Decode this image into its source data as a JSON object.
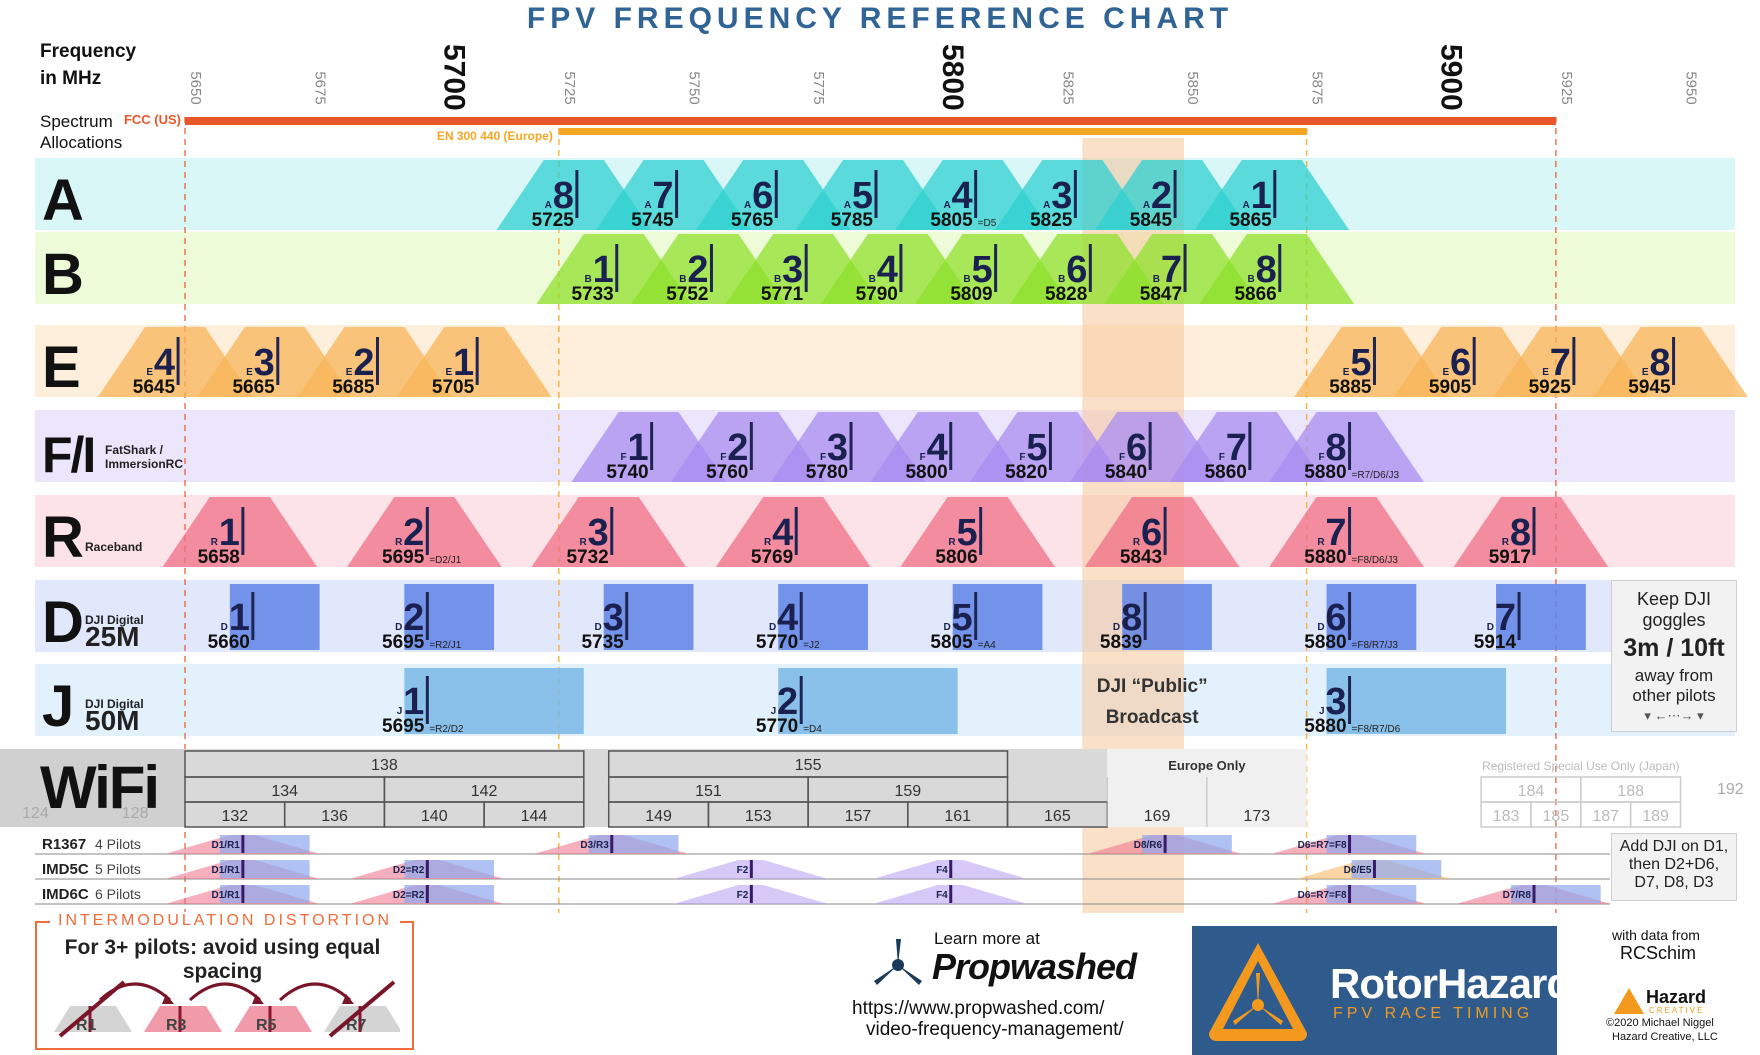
{
  "title": "FPV FREQUENCY REFERENCE CHART",
  "header": {
    "axis_label_line1": "Frequency",
    "axis_label_line2": "in MHz",
    "allocations_line1": "Spectrum",
    "allocations_line2": "Allocations"
  },
  "chart_data": {
    "type": "frequency_band_chart",
    "x_axis": {
      "label": "Frequency in MHz",
      "range": [
        5650,
        5950
      ],
      "ticks": [
        5650,
        5675,
        5700,
        5725,
        5750,
        5775,
        5800,
        5825,
        5850,
        5875,
        5900,
        5925,
        5950
      ],
      "major_ticks": [
        5700,
        5800,
        5900
      ]
    },
    "allocations": [
      {
        "name": "FCC (US)",
        "start": 5650,
        "end": 5925,
        "color": "#e8572a"
      },
      {
        "name": "EN 300 440 (Europe)",
        "start": 5725,
        "end": 5875,
        "color": "#f5a623"
      }
    ],
    "dji_public_broadcast": {
      "start": 5830,
      "end": 5848,
      "label_line1": "DJI “Public”",
      "label_line2": "Broadcast"
    },
    "bands": [
      {
        "letter": "A",
        "sub1": "",
        "sub2": "",
        "prefix": "A",
        "color": "#2fd0d0",
        "bg": "#d9f7f7",
        "channels": [
          {
            "ch": "8",
            "f": 5725
          },
          {
            "ch": "7",
            "f": 5745
          },
          {
            "ch": "6",
            "f": 5765
          },
          {
            "ch": "5",
            "f": 5785
          },
          {
            "ch": "4",
            "f": 5805,
            "note": "=D5"
          },
          {
            "ch": "3",
            "f": 5825
          },
          {
            "ch": "2",
            "f": 5845
          },
          {
            "ch": "1",
            "f": 5865
          }
        ]
      },
      {
        "letter": "B",
        "sub1": "",
        "sub2": "",
        "prefix": "B",
        "color": "#8fe02c",
        "bg": "#eefbd9",
        "channels": [
          {
            "ch": "1",
            "f": 5733
          },
          {
            "ch": "2",
            "f": 5752
          },
          {
            "ch": "3",
            "f": 5771
          },
          {
            "ch": "4",
            "f": 5790
          },
          {
            "ch": "5",
            "f": 5809
          },
          {
            "ch": "6",
            "f": 5828
          },
          {
            "ch": "7",
            "f": 5847
          },
          {
            "ch": "8",
            "f": 5866
          }
        ]
      },
      {
        "letter": "E",
        "sub1": "",
        "sub2": "",
        "prefix": "E",
        "color": "#f7b55a",
        "bg": "#fdefdc",
        "channels": [
          {
            "ch": "4",
            "f": 5645
          },
          {
            "ch": "3",
            "f": 5665
          },
          {
            "ch": "2",
            "f": 5685
          },
          {
            "ch": "1",
            "f": 5705
          },
          {
            "ch": "5",
            "f": 5885
          },
          {
            "ch": "6",
            "f": 5905
          },
          {
            "ch": "7",
            "f": 5925
          },
          {
            "ch": "8",
            "f": 5945
          }
        ]
      },
      {
        "letter": "F/I",
        "sub1": "FatShark /",
        "sub2": "ImmersionRC",
        "prefix": "F",
        "color": "#a98cf0",
        "bg": "#ece6fc",
        "channels": [
          {
            "ch": "1",
            "f": 5740
          },
          {
            "ch": "2",
            "f": 5760
          },
          {
            "ch": "3",
            "f": 5780
          },
          {
            "ch": "4",
            "f": 5800
          },
          {
            "ch": "5",
            "f": 5820
          },
          {
            "ch": "6",
            "f": 5840
          },
          {
            "ch": "7",
            "f": 5860
          },
          {
            "ch": "8",
            "f": 5880,
            "note": "=R7/D6/J3"
          }
        ]
      },
      {
        "letter": "R",
        "sub1": "Raceband",
        "sub2": "",
        "prefix": "R",
        "color": "#ef6f86",
        "bg": "#fbe3e8",
        "channels": [
          {
            "ch": "1",
            "f": 5658
          },
          {
            "ch": "2",
            "f": 5695,
            "note": "=D2/J1"
          },
          {
            "ch": "3",
            "f": 5732
          },
          {
            "ch": "4",
            "f": 5769
          },
          {
            "ch": "5",
            "f": 5806
          },
          {
            "ch": "6",
            "f": 5843
          },
          {
            "ch": "7",
            "f": 5880,
            "note": "=F8/D6/J3"
          },
          {
            "ch": "8",
            "f": 5917
          }
        ]
      },
      {
        "letter": "D",
        "sub1": "DJI Digital",
        "sub2": "25M",
        "prefix": "D",
        "color": "#5f83e6",
        "bg": "#e1e8fb",
        "width_mhz": 18,
        "channels": [
          {
            "ch": "1",
            "f": 5660
          },
          {
            "ch": "2",
            "f": 5695,
            "note": "=R2/J1"
          },
          {
            "ch": "3",
            "f": 5735
          },
          {
            "ch": "4",
            "f": 5770,
            "note": "=J2"
          },
          {
            "ch": "5",
            "f": 5805,
            "note": "=A4"
          },
          {
            "ch": "8",
            "f": 5839
          },
          {
            "ch": "6",
            "f": 5880,
            "note": "=F8/R7/J3"
          },
          {
            "ch": "7",
            "f": 5914
          }
        ]
      },
      {
        "letter": "J",
        "sub1": "DJI Digital",
        "sub2": "50M",
        "prefix": "J",
        "color": "#7ab8e8",
        "bg": "#e2f1fb",
        "width_mhz": 36,
        "channels": [
          {
            "ch": "1",
            "f": 5695,
            "note": "=R2/D2"
          },
          {
            "ch": "2",
            "f": 5770,
            "note": "=D4"
          },
          {
            "ch": "3",
            "f": 5880,
            "note": "=F8/R7/D6"
          }
        ]
      }
    ],
    "wifi": {
      "label": "WiFi",
      "row1": [
        {
          "ch": "138",
          "s": 5650,
          "e": 5730
        },
        {
          "ch": "155",
          "s": 5735,
          "e": 5815
        }
      ],
      "row2": [
        {
          "ch": "134",
          "s": 5650,
          "e": 5690
        },
        {
          "ch": "142",
          "s": 5690,
          "e": 5730
        },
        {
          "ch": "151",
          "s": 5735,
          "e": 5775
        },
        {
          "ch": "159",
          "s": 5775,
          "e": 5815
        }
      ],
      "row3": [
        {
          "ch": "132",
          "s": 5650,
          "e": 5670
        },
        {
          "ch": "136",
          "s": 5670,
          "e": 5690
        },
        {
          "ch": "140",
          "s": 5690,
          "e": 5710
        },
        {
          "ch": "144",
          "s": 5710,
          "e": 5730
        },
        {
          "ch": "149",
          "s": 5735,
          "e": 5755
        },
        {
          "ch": "153",
          "s": 5755,
          "e": 5775
        },
        {
          "ch": "157",
          "s": 5775,
          "e": 5795
        },
        {
          "ch": "161",
          "s": 5795,
          "e": 5815
        },
        {
          "ch": "165",
          "s": 5815,
          "e": 5835
        }
      ],
      "europe_label": "Europe Only",
      "europe": [
        {
          "ch": "169",
          "s": 5835,
          "e": 5855
        },
        {
          "ch": "173",
          "s": 5855,
          "e": 5875
        }
      ],
      "japan_label": "Registered Special Use Only (Japan)",
      "japan_row2": [
        {
          "ch": "184",
          "s": 5910,
          "e": 5930
        },
        {
          "ch": "188",
          "s": 5930,
          "e": 5950
        }
      ],
      "japan_row3": [
        {
          "ch": "183",
          "s": 5910,
          "e": 5920
        },
        {
          "ch": "185",
          "s": 5920,
          "e": 5930
        },
        {
          "ch": "187",
          "s": 5930,
          "e": 5940
        },
        {
          "ch": "189",
          "s": 5940,
          "e": 5950
        }
      ],
      "edge": [
        {
          "ch": "124",
          "f": 5620
        },
        {
          "ch": "128",
          "f": 5640
        },
        {
          "ch": "192",
          "f": 5960
        }
      ]
    },
    "pilot_sets": [
      {
        "name": "R1367",
        "pilots": "4 Pilots",
        "marks": [
          {
            "f": 5658,
            "label": "D1/R1",
            "kind": "rd"
          },
          {
            "f": 5732,
            "label": "D3/R3",
            "kind": "rd"
          },
          {
            "f": 5843,
            "label": "D8/R6",
            "kind": "rd"
          },
          {
            "f": 5880,
            "label": "D6=R7=F8",
            "kind": "rd"
          }
        ]
      },
      {
        "name": "IMD5C",
        "pilots": "5 Pilots",
        "marks": [
          {
            "f": 5658,
            "label": "D1/R1",
            "kind": "rd"
          },
          {
            "f": 5695,
            "label": "D2=R2",
            "kind": "rd"
          },
          {
            "f": 5760,
            "label": "F2",
            "kind": "f"
          },
          {
            "f": 5800,
            "label": "F4",
            "kind": "f"
          },
          {
            "f": 5885,
            "label": "D6/E5",
            "kind": "de"
          }
        ]
      },
      {
        "name": "IMD6C",
        "pilots": "6 Pilots",
        "marks": [
          {
            "f": 5658,
            "label": "D1/R1",
            "kind": "rd"
          },
          {
            "f": 5695,
            "label": "D2=R2",
            "kind": "rd"
          },
          {
            "f": 5760,
            "label": "F2",
            "kind": "f"
          },
          {
            "f": 5800,
            "label": "F4",
            "kind": "f"
          },
          {
            "f": 5880,
            "label": "D6=R7=F8",
            "kind": "rd"
          },
          {
            "f": 5917,
            "label": "D7/R8",
            "kind": "rd"
          }
        ]
      }
    ]
  },
  "notes": {
    "goggles_l1": "Keep DJI",
    "goggles_l2": "goggles",
    "goggles_l3": "3m / 10ft",
    "goggles_l4": "away from",
    "goggles_l5": "other pilots",
    "dji_l1": "Add DJI on D1,",
    "dji_l2": "then D2+D6,",
    "dji_l3": "D7, D8, D3"
  },
  "imd": {
    "title": "INTERMODULATION DISTORTION",
    "subtitle": "For 3+ pilots: avoid using equal spacing",
    "labels": [
      "R1",
      "R3",
      "R5",
      "R7"
    ]
  },
  "promo": {
    "learn": "Learn more at",
    "brand": "Propwashed",
    "url1": "https://www.propwashed.com/",
    "url2": "video-frequency-management/",
    "rh_name": "RotorHazard",
    "rh_sub": "FPV RACE TIMING",
    "data_from": "with data from",
    "data_author": "RCSchim",
    "hazard": "Hazard",
    "hazard_sub": "CREATIVE",
    "copyright1": "©2020 Michael Niggel",
    "copyright2": "Hazard Creative, LLC"
  },
  "colors": {
    "accent": "#2f6494",
    "fcc": "#e8572a",
    "eu": "#f5a623",
    "imd": "#f26b3a",
    "rotorhazard_bg": "#2f5b8c"
  }
}
